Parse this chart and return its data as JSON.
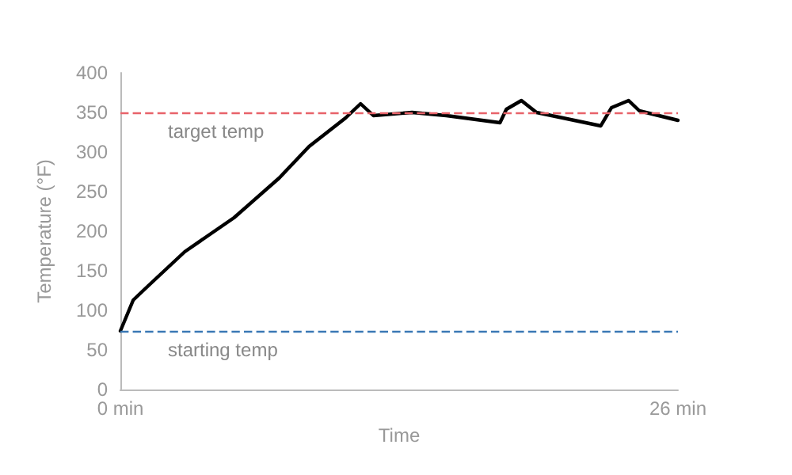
{
  "chart_data": {
    "type": "line",
    "xlabel": "Time",
    "ylabel": "Temperature (°F)",
    "x": [
      0,
      0.6,
      1.3,
      3.0,
      5.3,
      7.4,
      8.8,
      10.5,
      11.2,
      11.8,
      13.6,
      15.2,
      17.7,
      18.0,
      18.7,
      19.4,
      22.4,
      22.9,
      23.7,
      24.2,
      26
    ],
    "series": [
      {
        "color": "#000000",
        "values": [
          74,
          113,
          131,
          174,
          217,
          267,
          307,
          343,
          361,
          346,
          350,
          346,
          337,
          354,
          365,
          350,
          333,
          356,
          365,
          352,
          340
        ]
      }
    ],
    "xlim": [
      0,
      26
    ],
    "xticks": [
      {
        "value": 0,
        "label": "0 min"
      },
      {
        "value": 26,
        "label": "26 min"
      }
    ],
    "ylim": [
      0,
      400
    ],
    "yticks": [
      0,
      50,
      100,
      150,
      200,
      250,
      300,
      350,
      400
    ],
    "ref_lines": [
      {
        "axis": "y",
        "value": 350,
        "label": "target temp",
        "color": "#e8636a",
        "line_style": "dashed"
      },
      {
        "axis": "y",
        "value": 74,
        "label": "starting temp",
        "color": "#3a78b5",
        "line_style": "dashed"
      }
    ],
    "grid": false,
    "marker": "none",
    "line_style": "solid"
  }
}
